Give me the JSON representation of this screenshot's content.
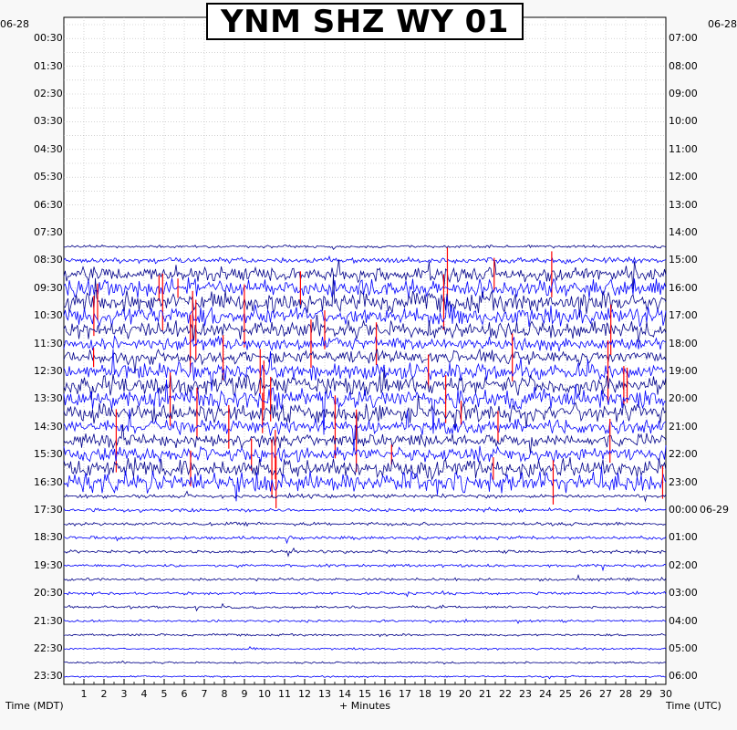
{
  "chart_data": {
    "type": "helicorder",
    "title": "YNM SHZ WY 01",
    "left_axis_label": "Time (MDT)",
    "right_axis_label": "Time (UTC)",
    "x_axis_label": "+ Minutes",
    "left_date_label": "06-28",
    "right_date_label_top": "06-28",
    "right_date_label_mid": "06-29",
    "x_ticks": [
      "1",
      "2",
      "3",
      "4",
      "5",
      "6",
      "7",
      "8",
      "9",
      "10",
      "11",
      "12",
      "13",
      "14",
      "15",
      "16",
      "17",
      "18",
      "19",
      "20",
      "21",
      "22",
      "23",
      "24",
      "25",
      "26",
      "27",
      "28",
      "29",
      "30"
    ],
    "xlim": [
      0,
      30
    ],
    "left_times": [
      "00:30",
      "01:30",
      "02:30",
      "03:30",
      "04:30",
      "05:30",
      "06:30",
      "07:30",
      "08:30",
      "09:30",
      "10:30",
      "11:30",
      "12:30",
      "13:30",
      "14:30",
      "15:30",
      "16:30",
      "17:30",
      "18:30",
      "19:30",
      "20:30",
      "21:30",
      "22:30",
      "23:30"
    ],
    "right_times": [
      "07:00",
      "08:00",
      "09:00",
      "10:00",
      "11:00",
      "12:00",
      "13:00",
      "14:00",
      "15:00",
      "16:00",
      "17:00",
      "18:00",
      "19:00",
      "20:00",
      "21:00",
      "22:00",
      "23:00",
      "00:00",
      "01:00",
      "02:00",
      "03:00",
      "04:00",
      "05:00",
      "06:00"
    ],
    "trace_colors": [
      "#00008b",
      "#0000ff"
    ],
    "clip_color": "#ff0000",
    "trace_start_hour": 8.0
  }
}
